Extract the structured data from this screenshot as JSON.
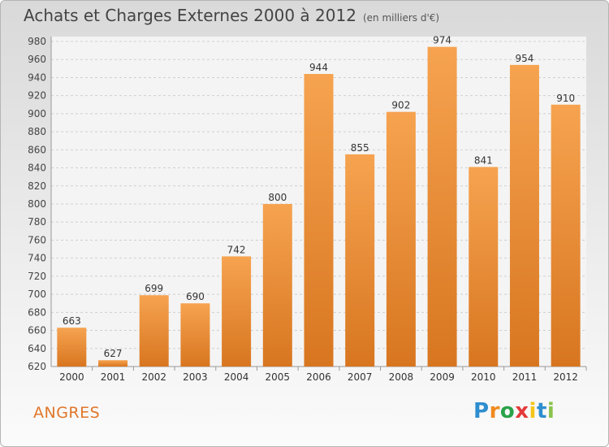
{
  "title": "Achats et Charges Externes 2000 à 2012",
  "unit": "(en milliers d'€)",
  "city": "ANGRES",
  "logo": {
    "text": "Proxiti",
    "colors": [
      "#2e8ecf",
      "#f08a1f",
      "#2aa24a",
      "#e43a3a",
      "#f5c518",
      "#2e8ecf",
      "#8bc34a"
    ]
  },
  "colors": {
    "bar_light": "#f6a350",
    "bar_dark": "#d87620",
    "city": "#e0762a"
  },
  "chart_data": {
    "type": "bar",
    "title": "Achats et Charges Externes 2000 à 2012",
    "categories": [
      "2000",
      "2001",
      "2002",
      "2003",
      "2004",
      "2005",
      "2006",
      "2007",
      "2008",
      "2009",
      "2010",
      "2011",
      "2012"
    ],
    "values": [
      663,
      627,
      699,
      690,
      742,
      800,
      944,
      855,
      902,
      974,
      841,
      954,
      910
    ],
    "ylim": [
      620,
      980
    ],
    "yticks": [
      620,
      640,
      660,
      680,
      700,
      720,
      740,
      760,
      780,
      800,
      820,
      840,
      860,
      880,
      900,
      920,
      940,
      960,
      980
    ],
    "grid": true,
    "data_labels": true
  }
}
